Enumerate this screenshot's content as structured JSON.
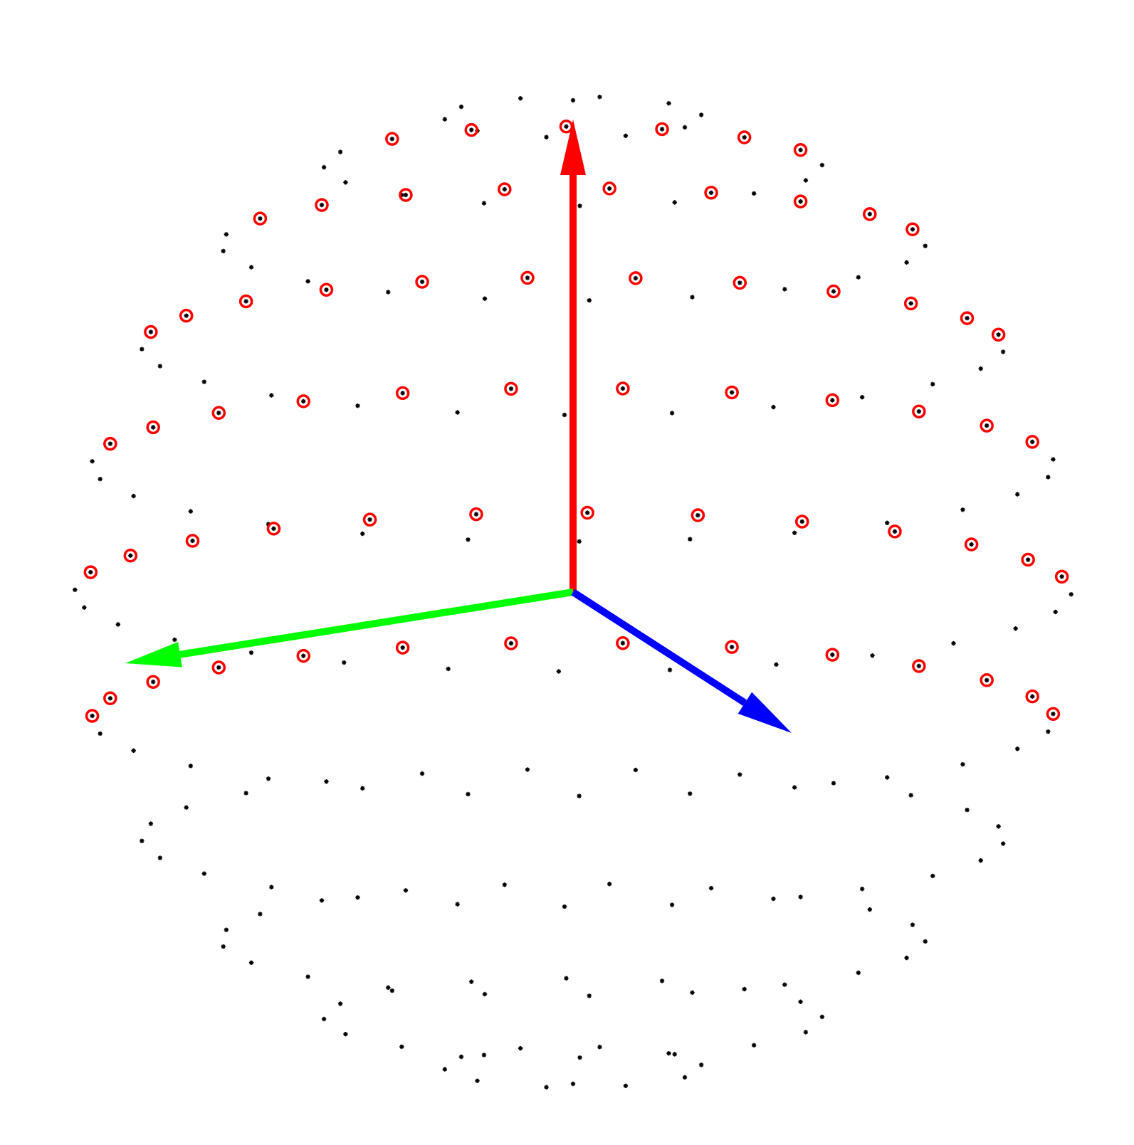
{
  "diagram": {
    "type": "3d-sphere-sample-points-with-axes",
    "colors": {
      "background": "#ffffff",
      "point": "#000000",
      "highlight_ring": "#ff0000",
      "axis_up": "#ff0000",
      "axis_left": "#00ff00",
      "axis_right": "#0000ff"
    },
    "axes": [
      {
        "name": "red-axis",
        "color": "#ff0000"
      },
      {
        "name": "green-axis",
        "color": "#00ff00"
      },
      {
        "name": "blue-axis",
        "color": "#0000ff"
      }
    ],
    "point_marker": "asterisk",
    "highlight_marker": "red-circle",
    "highlighted_hemisphere": "upper-front"
  }
}
